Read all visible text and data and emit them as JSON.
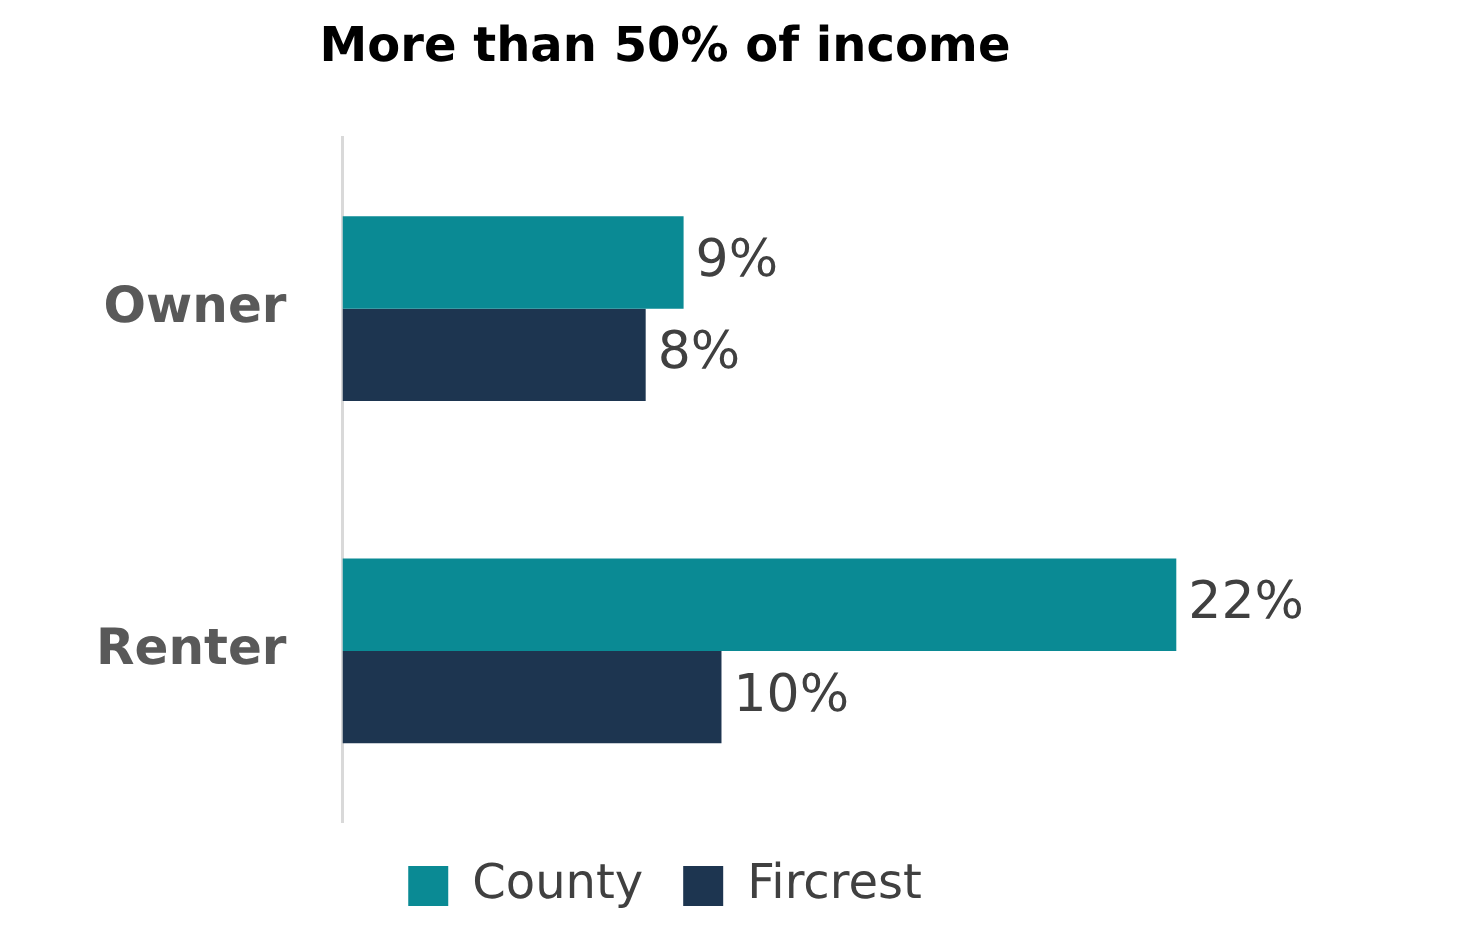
{
  "chart_data": {
    "type": "bar",
    "orientation": "horizontal",
    "title": "More than 50% of income",
    "categories": [
      "Owner",
      "Renter"
    ],
    "series": [
      {
        "name": "County",
        "color": "#0a8a94",
        "values": [
          9,
          22
        ],
        "value_labels": [
          "9%",
          "22%"
        ]
      },
      {
        "name": "Fircrest",
        "color": "#1d3550",
        "values": [
          8,
          10
        ],
        "value_labels": [
          "8%",
          "10%"
        ]
      }
    ],
    "tick_labels": "y",
    "grid": false,
    "legend": "bottom"
  }
}
